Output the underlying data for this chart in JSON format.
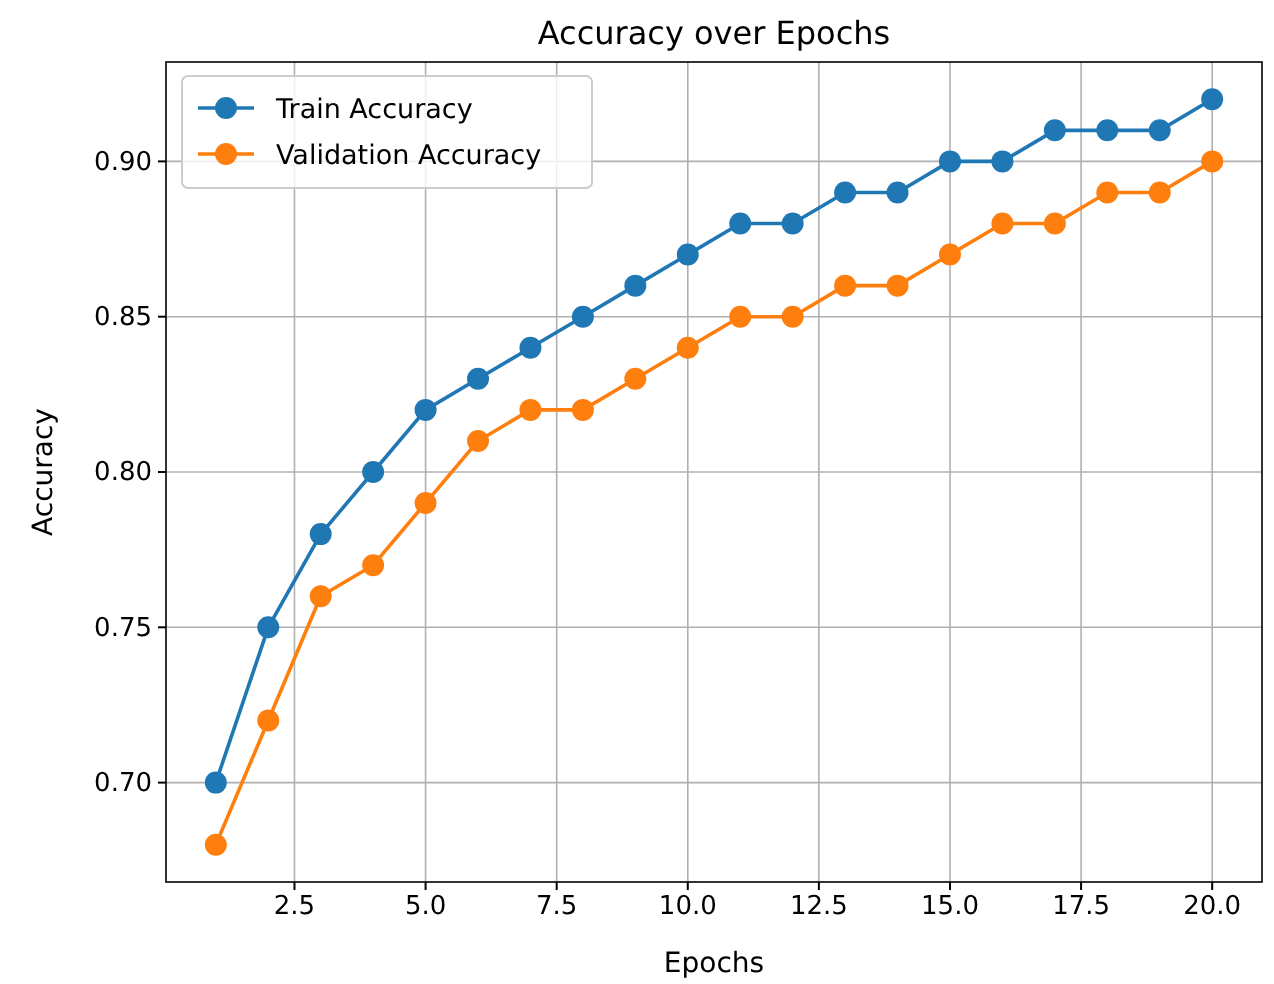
{
  "chart_data": {
    "type": "line",
    "title": "Accuracy over Epochs",
    "xlabel": "Epochs",
    "ylabel": "Accuracy",
    "x": [
      1,
      2,
      3,
      4,
      5,
      6,
      7,
      8,
      9,
      10,
      11,
      12,
      13,
      14,
      15,
      16,
      17,
      18,
      19,
      20
    ],
    "series": [
      {
        "name": "Train Accuracy",
        "color": "#1f77b4",
        "values": [
          0.7,
          0.75,
          0.78,
          0.8,
          0.82,
          0.83,
          0.84,
          0.85,
          0.86,
          0.87,
          0.88,
          0.88,
          0.89,
          0.89,
          0.9,
          0.9,
          0.91,
          0.91,
          0.91,
          0.92
        ]
      },
      {
        "name": "Validation Accuracy",
        "color": "#ff7f0e",
        "values": [
          0.68,
          0.72,
          0.76,
          0.77,
          0.79,
          0.81,
          0.82,
          0.82,
          0.83,
          0.84,
          0.85,
          0.85,
          0.86,
          0.86,
          0.87,
          0.88,
          0.88,
          0.89,
          0.89,
          0.9
        ]
      }
    ],
    "xlim": [
      0.05,
      20.95
    ],
    "ylim": [
      0.668,
      0.932
    ],
    "xticks": [
      {
        "value": 2.5,
        "label": "2.5"
      },
      {
        "value": 5,
        "label": "5.0"
      },
      {
        "value": 7.5,
        "label": "7.5"
      },
      {
        "value": 10,
        "label": "10.0"
      },
      {
        "value": 12.5,
        "label": "12.5"
      },
      {
        "value": 15,
        "label": "15.0"
      },
      {
        "value": 17.5,
        "label": "17.5"
      },
      {
        "value": 20,
        "label": "20.0"
      }
    ],
    "yticks": [
      {
        "value": 0.7,
        "label": "0.70"
      },
      {
        "value": 0.75,
        "label": "0.75"
      },
      {
        "value": 0.8,
        "label": "0.80"
      },
      {
        "value": 0.85,
        "label": "0.85"
      },
      {
        "value": 0.9,
        "label": "0.90"
      }
    ],
    "grid": true,
    "legend": "top left",
    "marker": "circle",
    "line_style": "solid"
  }
}
